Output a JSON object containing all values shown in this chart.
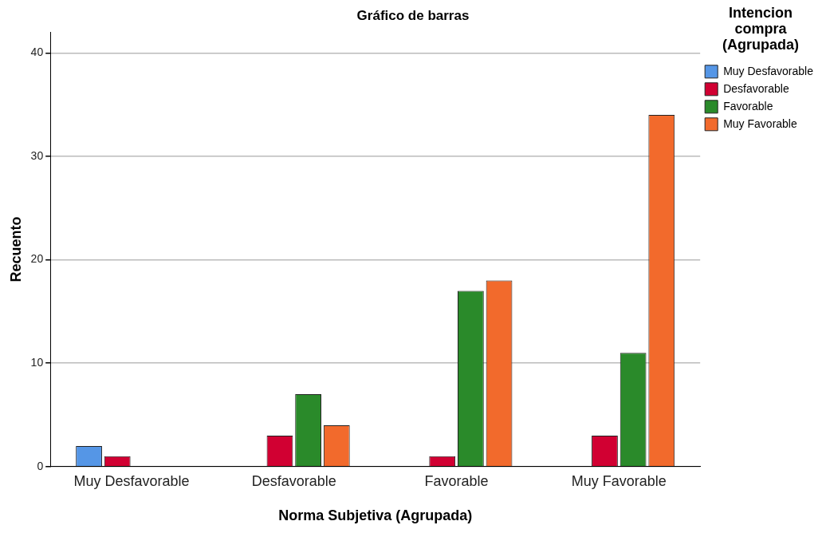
{
  "chart_data": {
    "type": "bar",
    "title": "Gráfico de barras",
    "xlabel": "Norma Subjetiva (Agrupada)",
    "ylabel": "Recuento",
    "legend_title": "Intencion compra (Agrupada)",
    "categories": [
      "Muy Desfavorable",
      "Desfavorable",
      "Favorable",
      "Muy Favorable"
    ],
    "series": [
      {
        "name": "Muy Desfavorable",
        "color": "#5596e6",
        "values": [
          2,
          null,
          null,
          null
        ]
      },
      {
        "name": "Desfavorable",
        "color": "#d10032",
        "values": [
          1,
          3,
          1,
          3
        ]
      },
      {
        "name": "Favorable",
        "color": "#2a8a2a",
        "values": [
          null,
          7,
          17,
          11
        ]
      },
      {
        "name": "Muy Favorable",
        "color": "#f26a2c",
        "values": [
          null,
          4,
          18,
          34
        ]
      }
    ],
    "ylim": [
      0,
      42
    ],
    "yticks": [
      0,
      10,
      20,
      30,
      40
    ],
    "grid": "y",
    "legend": "right"
  }
}
